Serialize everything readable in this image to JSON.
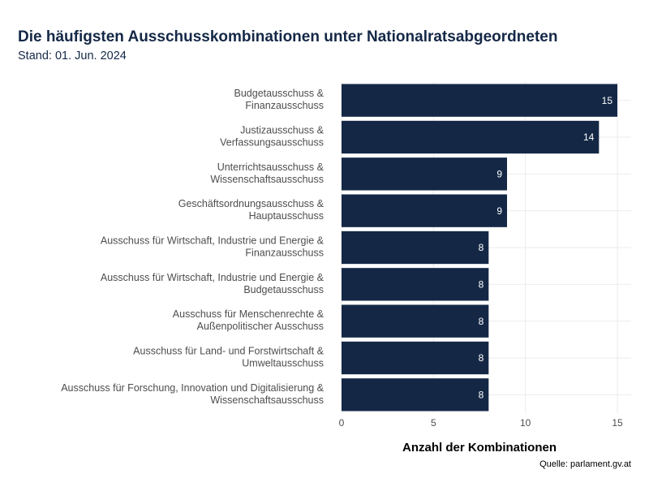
{
  "chart_data": {
    "type": "bar",
    "orientation": "horizontal",
    "title": "Die häufigsten Ausschusskombinationen unter Nationalratsabgeordneten",
    "subtitle": "Stand: 01. Jun. 2024",
    "x_label": "Anzahl der Kombinationen",
    "source": "Quelle: parlament.gv.at",
    "categories": [
      "Budgetausschuss &\nFinanzausschuss",
      "Justizausschuss &\nVerfassungsausschuss",
      "Unterrichtsausschuss &\nWissenschaftsausschuss",
      "Geschäftsordnungsausschuss &\nHauptausschuss",
      "Ausschuss für Wirtschaft, Industrie und Energie &\nFinanzausschuss",
      "Ausschuss für Wirtschaft, Industrie und Energie &\nBudgetausschuss",
      "Ausschuss für Menschenrechte &\nAußenpolitischer Ausschuss",
      "Ausschuss für Land- und Forstwirtschaft &\nUmweltausschuss",
      "Ausschuss für Forschung, Innovation und Digitalisierung &\nWissenschaftsausschuss"
    ],
    "values": [
      15,
      14,
      9,
      9,
      8,
      8,
      8,
      8,
      8
    ],
    "color": "#142846",
    "xlim": [
      0,
      15.75
    ],
    "xticks": [
      0,
      5,
      10,
      15
    ],
    "grid": true
  }
}
